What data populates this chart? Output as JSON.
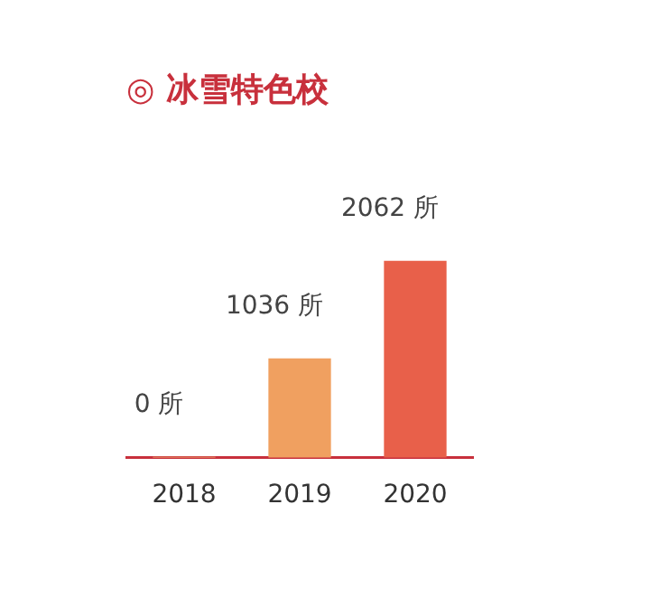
{
  "chart_data": {
    "type": "bar",
    "title": "◎ 冰雪特色校",
    "categories": [
      "2018",
      "2019",
      "2020"
    ],
    "values": [
      0,
      1036,
      2062
    ],
    "colors": [
      "#f0b070",
      "#f0a060",
      "#e8604a"
    ],
    "value_labels": [
      "0 所",
      "1036 所",
      "2062 所"
    ],
    "grid": false,
    "legend": false
  }
}
